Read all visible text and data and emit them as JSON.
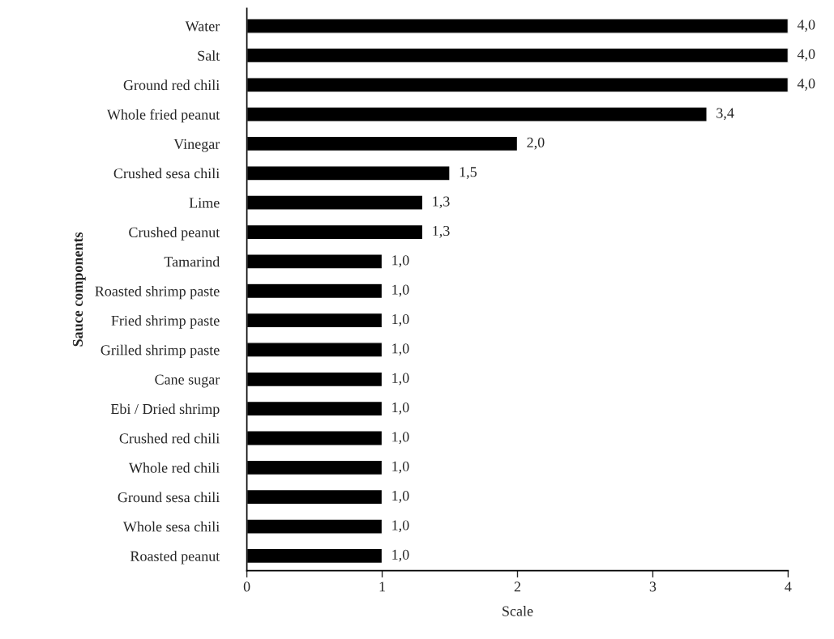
{
  "chart_data": {
    "type": "bar",
    "orientation": "horizontal",
    "xlabel": "Scale",
    "ylabel": "Sauce components",
    "categories": [
      "Water",
      "Salt",
      "Ground red chili",
      "Whole fried peanut",
      "Vinegar",
      "Crushed sesa chili",
      "Lime",
      "Crushed peanut",
      "Tamarind",
      "Roasted shrimp paste",
      "Fried shrimp paste",
      "Grilled shrimp paste",
      "Cane sugar",
      "Ebi / Dried shrimp",
      "Crushed red chili",
      "Whole red chili",
      "Ground sesa chili",
      "Whole sesa chili",
      "Roasted peanut"
    ],
    "values": [
      4.0,
      4.0,
      4.0,
      3.4,
      2.0,
      1.5,
      1.3,
      1.3,
      1.0,
      1.0,
      1.0,
      1.0,
      1.0,
      1.0,
      1.0,
      1.0,
      1.0,
      1.0,
      1.0
    ],
    "value_labels": [
      "4,0",
      "4,0",
      "4,0",
      "3,4",
      "2,0",
      "1,5",
      "1,3",
      "1,3",
      "1,0",
      "1,0",
      "1,0",
      "1,0",
      "1,0",
      "1,0",
      "1,0",
      "1,0",
      "1,0",
      "1,0",
      "1,0"
    ],
    "color": "#000000",
    "xlim": [
      0,
      4
    ],
    "xticks": [
      0,
      1,
      2,
      3,
      4
    ],
    "grid": false,
    "legend": false
  }
}
